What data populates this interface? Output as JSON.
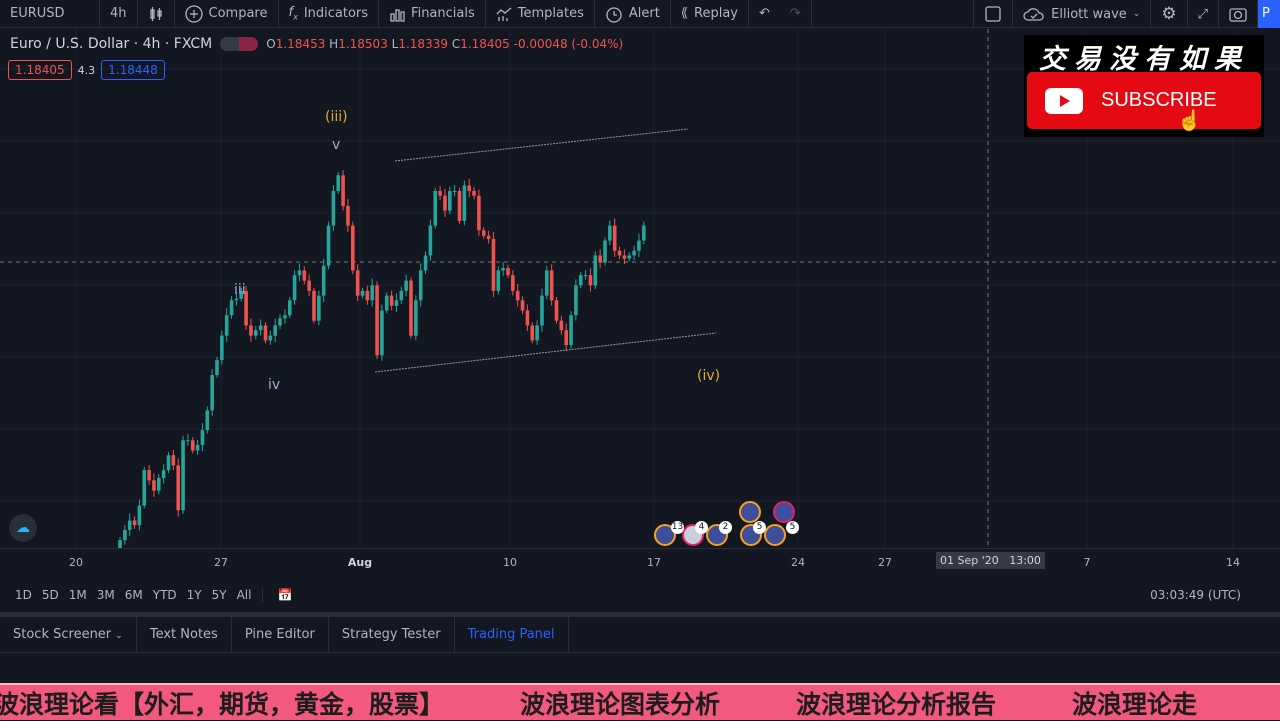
{
  "toolbar": {
    "symbol": "EURUSD",
    "interval": "4h",
    "compare": "Compare",
    "indicators": "Indicators",
    "financials": "Financials",
    "templates": "Templates",
    "alert": "Alert",
    "replay": "Replay",
    "layout_name": "Elliott wave",
    "publish_partial": "P"
  },
  "legend": {
    "title": "Euro / U.S. Dollar · 4h · FXCM",
    "o_label": "O",
    "o": "1.18453",
    "h_label": "H",
    "h": "1.18503",
    "l_label": "L",
    "l": "1.18339",
    "c_label": "C",
    "c": "1.18405",
    "change": "-0.00048 (-0.04%)",
    "bid": "1.18405",
    "spread": "4.3",
    "ask": "1.18448"
  },
  "waves": {
    "iii_paren": "(iii)",
    "v": "v",
    "iii": "iii",
    "iv": "iv",
    "iv_paren": "(iv)"
  },
  "events": {
    "badges": [
      "13",
      "4",
      "2",
      "5",
      "5"
    ]
  },
  "time_axis": {
    "labels": [
      "20",
      "27",
      "Aug",
      "10",
      "17",
      "24",
      "27",
      "7",
      "14"
    ],
    "crosshair": "01 Sep '20   13:00"
  },
  "ranges": [
    "1D",
    "5D",
    "1M",
    "3M",
    "6M",
    "YTD",
    "1Y",
    "5Y",
    "All"
  ],
  "clock": "03:03:49 (UTC)",
  "bottom_tabs": [
    "Stock Screener",
    "Text Notes",
    "Pine Editor",
    "Strategy Tester",
    "Trading Panel"
  ],
  "active_tab": "Trading Panel",
  "overlay": {
    "channel_name": "交易没有如果",
    "subscribe": "SUBSCRIBE"
  },
  "banner": [
    "波浪理论看【外汇，期货，黄金，股票】",
    "波浪理论图表分析",
    "波浪理论分析报告",
    "波浪理论走"
  ],
  "colors": {
    "up": "#26a69a",
    "down": "#ef5350",
    "accent": "#2962ff",
    "wave_gold": "#e8a838",
    "banner": "#f3587d"
  },
  "chart_data": {
    "type": "candlestick",
    "symbol": "EURUSD",
    "interval": "4h",
    "ylim": [
      1.143,
      1.209
    ],
    "first_open": 1.143,
    "closes": [
      1.144,
      1.1453,
      1.1465,
      1.1459,
      1.1484,
      1.1529,
      1.1516,
      1.1503,
      1.1519,
      1.1529,
      1.1548,
      1.1535,
      1.1478,
      1.1567,
      1.1567,
      1.1554,
      1.1561,
      1.158,
      1.1605,
      1.165,
      1.1669,
      1.17,
      1.1726,
      1.1745,
      1.1747,
      1.1757,
      1.1713,
      1.17,
      1.1707,
      1.1713,
      1.1694,
      1.17,
      1.1713,
      1.1722,
      1.1726,
      1.1745,
      1.1777,
      1.1783,
      1.177,
      1.1757,
      1.1719,
      1.1751,
      1.1789,
      1.184,
      1.1884,
      1.1904,
      1.1865,
      1.184,
      1.1783,
      1.1751,
      1.1757,
      1.1745,
      1.1764,
      1.1675,
      1.1732,
      1.1751,
      1.1738,
      1.1745,
      1.1757,
      1.177,
      1.17,
      1.1745,
      1.1783,
      1.1802,
      1.184,
      1.1884,
      1.1878,
      1.1859,
      1.1884,
      1.1884,
      1.1846,
      1.1891,
      1.1884,
      1.1878,
      1.1834,
      1.1827,
      1.1823,
      1.1757,
      1.1783,
      1.1786,
      1.1777,
      1.1757,
      1.1745,
      1.1732,
      1.1713,
      1.1694,
      1.1713,
      1.1751,
      1.1783,
      1.1745,
      1.1719,
      1.1707,
      1.1688,
      1.1726,
      1.1764,
      1.1777,
      1.1777,
      1.1764,
      1.1802,
      1.1793,
      1.1821,
      1.184,
      1.1808,
      1.1802,
      1.1798,
      1.1802,
      1.1808,
      1.1821,
      1.184
    ]
  }
}
